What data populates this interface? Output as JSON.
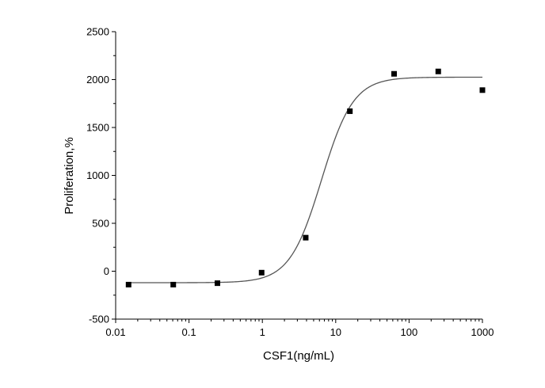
{
  "chart_data": {
    "type": "scatter",
    "title": "",
    "xlabel": "CSF1(ng/mL)",
    "ylabel": "Proliferation,%",
    "x_scale": "log",
    "xlim": [
      0.01,
      1000
    ],
    "ylim": [
      -500,
      2500
    ],
    "x_ticks": [
      0.01,
      0.1,
      1,
      10,
      100,
      1000
    ],
    "x_tick_labels": [
      "0.01",
      "0.1",
      "1",
      "10",
      "100",
      "1000"
    ],
    "y_ticks": [
      -500,
      0,
      500,
      1000,
      1500,
      2000,
      2500
    ],
    "y_tick_labels": [
      "-500",
      "0",
      "500",
      "1000",
      "1500",
      "2000",
      "2500"
    ],
    "grid": false,
    "legend": "none",
    "colors": {
      "points": "#000000",
      "curve": "#555555",
      "axes": "#000000"
    },
    "series": [
      {
        "type": "scatter",
        "marker": "square",
        "x": [
          0.015,
          0.061,
          0.244,
          0.977,
          3.9,
          15.6,
          62.5,
          250,
          1000
        ],
        "y": [
          -140,
          -140,
          -125,
          -15,
          350,
          1670,
          2060,
          2085,
          1890
        ]
      },
      {
        "type": "line",
        "fit": "four-parameter logistic",
        "bottom": -120,
        "top": 2025,
        "ec50": 6.4,
        "hill": 2.0
      }
    ]
  }
}
